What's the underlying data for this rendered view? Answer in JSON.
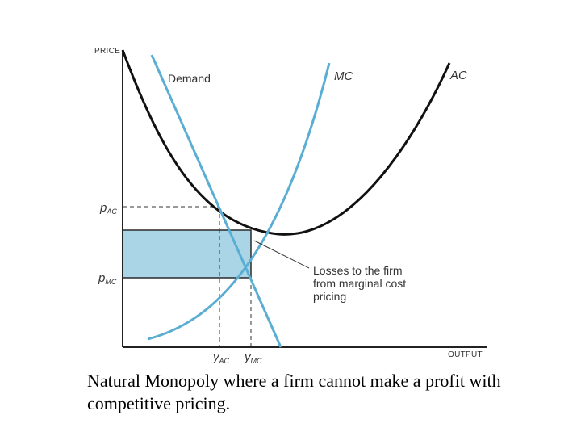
{
  "axes": {
    "y_label": "PRICE",
    "x_label": "OUTPUT"
  },
  "curves": {
    "demand": "Demand",
    "mc": "MC",
    "ac": "AC"
  },
  "ticks": {
    "p_ac_main": "p",
    "p_ac_sub": "AC",
    "p_mc_main": "p",
    "p_mc_sub": "MC",
    "y_ac_main": "y",
    "y_ac_sub": "AC",
    "y_mc_main": "y",
    "y_mc_sub": "MC"
  },
  "annotation": {
    "lines": [
      "Losses to the firm",
      "from marginal cost",
      "pricing"
    ]
  },
  "caption": "Natural Monopoly where a firm cannot make a profit with competitive pricing.",
  "colors": {
    "demand": "#5aaed3",
    "mc": "#5aaed3",
    "ac": "#111111",
    "loss_fill": "#a9d5e6",
    "axis": "#222222"
  }
}
